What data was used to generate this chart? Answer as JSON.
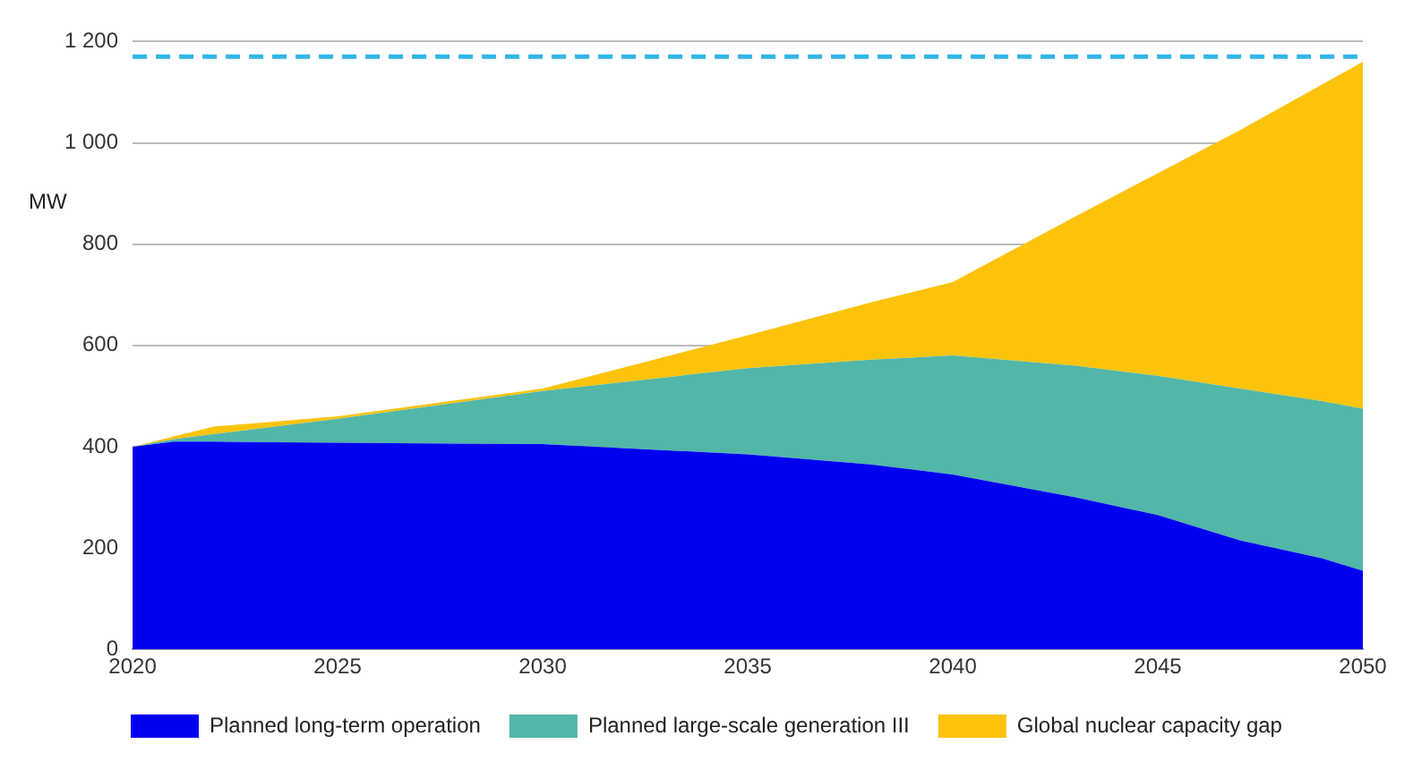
{
  "chart_data": {
    "type": "area",
    "stacked": true,
    "ylabel": "MW",
    "x": [
      2020,
      2021,
      2022,
      2025,
      2030,
      2035,
      2038,
      2040,
      2043,
      2045,
      2047,
      2049,
      2050
    ],
    "series": [
      {
        "name": "Planned long-term operation",
        "color": "#0000f0",
        "values": [
          400,
          410,
          410,
          408,
          405,
          385,
          365,
          345,
          300,
          265,
          215,
          180,
          155
        ]
      },
      {
        "name": "Planned large-scale generation III",
        "color": "#52b6a8",
        "values": [
          0,
          5,
          15,
          47,
          105,
          170,
          207,
          235,
          260,
          275,
          300,
          310,
          320
        ]
      },
      {
        "name": "Global nuclear capacity gap",
        "color": "#fcc30a",
        "values": [
          0,
          5,
          15,
          5,
          5,
          65,
          113,
          145,
          295,
          400,
          510,
          625,
          685
        ]
      }
    ],
    "xlim": [
      2020,
      2050
    ],
    "xticks": [
      2020,
      2025,
      2030,
      2035,
      2040,
      2045,
      2050
    ],
    "ylim": [
      0,
      1200
    ],
    "yticks": [
      0,
      200,
      400,
      600,
      800,
      {
        "value": 1000,
        "label": "1 000"
      },
      {
        "value": 1200,
        "label": "1 200"
      }
    ],
    "ref_lines": [
      {
        "axis": "y",
        "value": 1170,
        "color": "#33b5e8",
        "line_style": "dashed"
      }
    ],
    "grid": "y",
    "legend": "bottom"
  }
}
